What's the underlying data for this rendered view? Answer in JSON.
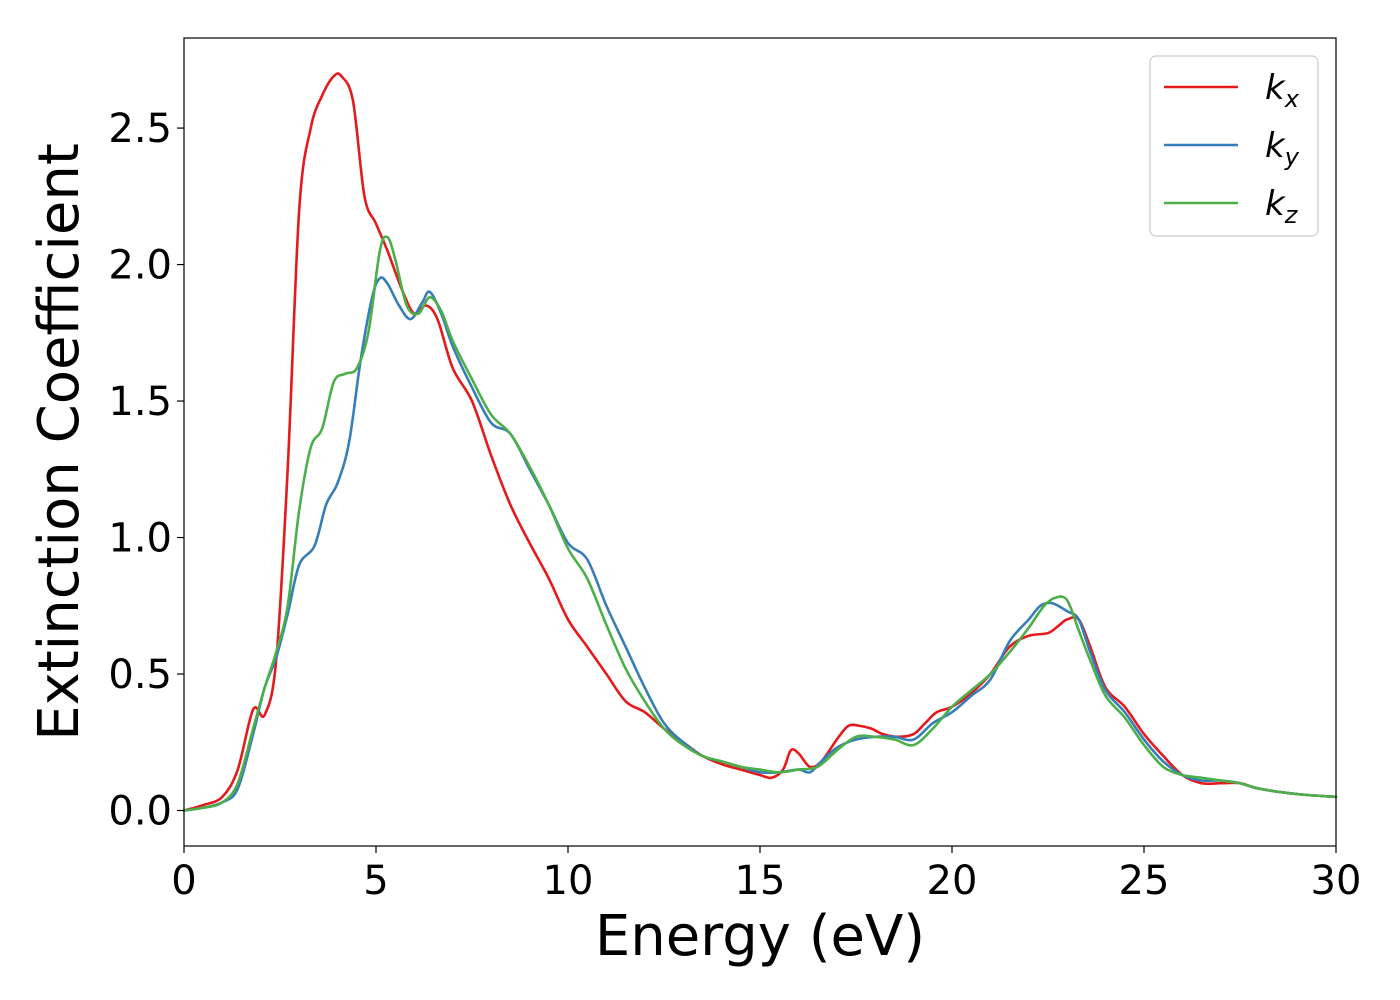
{
  "chart_data": {
    "type": "line",
    "title": "",
    "xlabel": "Energy (eV)",
    "ylabel": "Extinction Coefficient",
    "xlim": [
      0,
      30
    ],
    "ylim": [
      -0.13,
      2.83
    ],
    "xticks": [
      0,
      5,
      10,
      15,
      20,
      25,
      30
    ],
    "xtick_labels": [
      "0",
      "5",
      "10",
      "15",
      "20",
      "25",
      "30"
    ],
    "yticks": [
      0.0,
      0.5,
      1.0,
      1.5,
      2.0,
      2.5
    ],
    "ytick_labels": [
      "0.0",
      "0.5",
      "1.0",
      "1.5",
      "2.0",
      "2.5"
    ],
    "grid": false,
    "legend_position": "top-right",
    "series": [
      {
        "name": "k",
        "subscript": "x",
        "color": "#e41a1c",
        "x": [
          0,
          0.5,
          1,
          1.4,
          1.8,
          2.1,
          2.4,
          2.7,
          3,
          3.3,
          3.6,
          3.9,
          4.1,
          4.4,
          4.7,
          5,
          5.3,
          5.7,
          6,
          6.3,
          6.6,
          7,
          7.5,
          8,
          8.5,
          9,
          9.5,
          10,
          10.5,
          11,
          11.5,
          12,
          12.5,
          13,
          13.5,
          14,
          14.5,
          15,
          15.3,
          15.6,
          15.8,
          16,
          16.3,
          16.6,
          17,
          17.3,
          17.6,
          17.9,
          18.2,
          18.6,
          19,
          19.3,
          19.6,
          20,
          20.5,
          21,
          21.5,
          22,
          22.5,
          22.8,
          23,
          23.3,
          23.6,
          24,
          24.5,
          25,
          25.5,
          26,
          26.5,
          27,
          27.5,
          28,
          29,
          30
        ],
        "y": [
          0,
          0.02,
          0.05,
          0.15,
          0.37,
          0.35,
          0.55,
          1.25,
          2.2,
          2.5,
          2.62,
          2.69,
          2.69,
          2.6,
          2.25,
          2.15,
          2.05,
          1.9,
          1.82,
          1.85,
          1.8,
          1.62,
          1.5,
          1.3,
          1.12,
          0.98,
          0.85,
          0.7,
          0.6,
          0.5,
          0.4,
          0.36,
          0.3,
          0.25,
          0.2,
          0.17,
          0.15,
          0.13,
          0.12,
          0.15,
          0.22,
          0.21,
          0.16,
          0.18,
          0.26,
          0.31,
          0.31,
          0.3,
          0.28,
          0.27,
          0.28,
          0.32,
          0.36,
          0.38,
          0.43,
          0.5,
          0.6,
          0.64,
          0.65,
          0.68,
          0.7,
          0.7,
          0.6,
          0.45,
          0.38,
          0.28,
          0.2,
          0.13,
          0.1,
          0.1,
          0.1,
          0.08,
          0.06,
          0.05
        ]
      },
      {
        "name": "k",
        "subscript": "y",
        "color": "#377eb8",
        "x": [
          0,
          0.5,
          1,
          1.4,
          1.8,
          2.1,
          2.4,
          2.7,
          3,
          3.4,
          3.7,
          4,
          4.3,
          4.6,
          4.9,
          5.1,
          5.3,
          5.6,
          5.9,
          6.2,
          6.4,
          6.7,
          7,
          7.5,
          8,
          8.5,
          9,
          9.5,
          10,
          10.5,
          11,
          11.5,
          12,
          12.5,
          13,
          13.5,
          14,
          14.5,
          15,
          15.5,
          16,
          16.3,
          16.6,
          17,
          17.5,
          18,
          18.5,
          19,
          19.5,
          20,
          20.5,
          21,
          21.5,
          22,
          22.3,
          22.6,
          23,
          23.3,
          23.6,
          24,
          24.5,
          25,
          25.5,
          26,
          26.5,
          27,
          27.5,
          28,
          29,
          30
        ],
        "y": [
          0,
          0.01,
          0.03,
          0.08,
          0.28,
          0.45,
          0.56,
          0.72,
          0.9,
          0.97,
          1.12,
          1.2,
          1.35,
          1.65,
          1.88,
          1.95,
          1.93,
          1.85,
          1.8,
          1.86,
          1.9,
          1.82,
          1.7,
          1.55,
          1.42,
          1.38,
          1.25,
          1.12,
          0.98,
          0.92,
          0.75,
          0.6,
          0.45,
          0.32,
          0.25,
          0.2,
          0.18,
          0.16,
          0.14,
          0.14,
          0.15,
          0.14,
          0.18,
          0.23,
          0.26,
          0.27,
          0.27,
          0.26,
          0.32,
          0.36,
          0.42,
          0.48,
          0.62,
          0.7,
          0.75,
          0.76,
          0.73,
          0.7,
          0.58,
          0.44,
          0.36,
          0.26,
          0.18,
          0.13,
          0.11,
          0.11,
          0.1,
          0.08,
          0.06,
          0.05
        ]
      },
      {
        "name": "k",
        "subscript": "z",
        "color": "#4daf4a",
        "x": [
          0,
          0.5,
          1,
          1.4,
          1.8,
          2.1,
          2.4,
          2.7,
          3,
          3.3,
          3.6,
          3.9,
          4.2,
          4.5,
          4.8,
          5.1,
          5.3,
          5.5,
          5.8,
          6.1,
          6.4,
          6.7,
          7,
          7.5,
          8,
          8.5,
          9,
          9.5,
          10,
          10.5,
          11,
          11.5,
          12,
          12.5,
          13,
          13.5,
          14,
          14.5,
          15,
          15.5,
          16,
          16.5,
          17,
          17.5,
          18,
          18.5,
          19,
          19.5,
          20,
          20.5,
          21,
          21.5,
          22,
          22.4,
          22.7,
          23,
          23.3,
          23.6,
          24,
          24.5,
          25,
          25.5,
          26,
          26.5,
          27,
          27.5,
          28,
          29,
          30
        ],
        "y": [
          0,
          0.01,
          0.03,
          0.1,
          0.3,
          0.45,
          0.58,
          0.75,
          1.1,
          1.33,
          1.4,
          1.57,
          1.6,
          1.62,
          1.75,
          2.05,
          2.1,
          2.02,
          1.85,
          1.82,
          1.88,
          1.83,
          1.72,
          1.58,
          1.45,
          1.38,
          1.26,
          1.12,
          0.96,
          0.85,
          0.68,
          0.52,
          0.4,
          0.3,
          0.24,
          0.2,
          0.18,
          0.16,
          0.15,
          0.14,
          0.15,
          0.16,
          0.22,
          0.27,
          0.27,
          0.26,
          0.24,
          0.3,
          0.38,
          0.44,
          0.5,
          0.58,
          0.67,
          0.75,
          0.78,
          0.77,
          0.66,
          0.55,
          0.42,
          0.34,
          0.24,
          0.16,
          0.13,
          0.12,
          0.11,
          0.1,
          0.08,
          0.06,
          0.05
        ]
      }
    ]
  }
}
